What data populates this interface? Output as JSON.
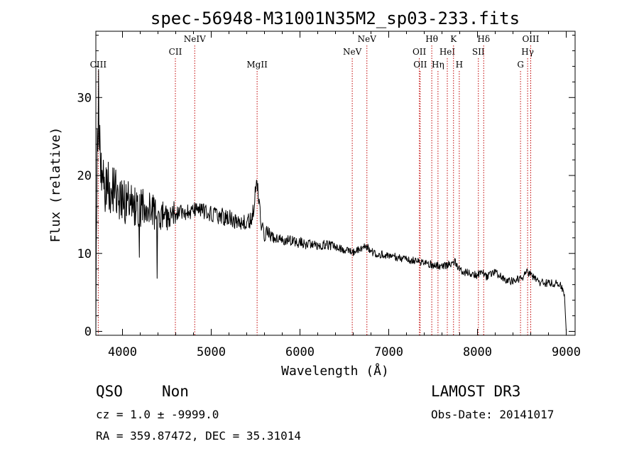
{
  "chart_data": {
    "type": "line",
    "title": "spec-56948-M31001N35M2_sp03-233.fits",
    "xlabel": "Wavelength (Å)",
    "ylabel": "Flux (relative)",
    "xlim": [
      3700,
      9100
    ],
    "ylim": [
      -0.5,
      38.5
    ],
    "x_ticks": [
      4000,
      5000,
      6000,
      7000,
      8000,
      9000
    ],
    "y_ticks": [
      0,
      10,
      20,
      30
    ],
    "spectrum_shape": {
      "x": [
        3700,
        3710,
        3720,
        3730,
        3740,
        3760,
        3780,
        3800,
        3850,
        3900,
        3950,
        4000,
        4100,
        4200,
        4300,
        4400,
        4500,
        4600,
        4700,
        4800,
        4900,
        5000,
        5100,
        5200,
        5300,
        5400,
        5450,
        5480,
        5500,
        5520,
        5540,
        5560,
        5580,
        5600,
        5650,
        5700,
        5800,
        5900,
        6000,
        6100,
        6200,
        6300,
        6400,
        6500,
        6600,
        6700,
        6750,
        6800,
        6900,
        7000,
        7100,
        7200,
        7300,
        7400,
        7500,
        7600,
        7700,
        7750,
        7800,
        7900,
        8000,
        8050,
        8100,
        8150,
        8200,
        8300,
        8400,
        8500,
        8550,
        8600,
        8650,
        8700,
        8800,
        8900,
        8950,
        8980,
        9000
      ],
      "y": [
        0,
        20,
        26,
        30,
        25,
        22,
        20,
        19,
        18.5,
        18,
        17.5,
        17,
        16.5,
        16,
        15.5,
        15,
        14.8,
        15.2,
        15.4,
        15.5,
        15.4,
        15.2,
        14.8,
        14.5,
        14.2,
        14,
        14.3,
        16,
        18.5,
        18.6,
        17,
        14,
        13,
        12.6,
        12.2,
        12,
        11.8,
        11.6,
        11.4,
        11.2,
        11.1,
        11,
        10.8,
        10.5,
        10.2,
        10.6,
        10.9,
        10.2,
        9.9,
        9.7,
        9.5,
        9.3,
        9.0,
        8.8,
        8.5,
        8.4,
        8.6,
        8.9,
        7.8,
        7.5,
        7.2,
        7.9,
        7.0,
        7.3,
        7.6,
        6.6,
        6.4,
        6.9,
        7.6,
        7.4,
        6.7,
        6.3,
        6.2,
        6.1,
        5.8,
        4.5,
        0
      ],
      "noise_amplitude_blue": 4,
      "noise_amplitude_red": 0.3
    },
    "line_markers": [
      {
        "label": "CIII",
        "x": 3727,
        "row": 2
      },
      {
        "label": "CII",
        "x": 4596,
        "row": 1
      },
      {
        "label": "NeIV",
        "x": 4814,
        "row": 0
      },
      {
        "label": "MgII",
        "x": 5517,
        "row": 2
      },
      {
        "label": "NeV",
        "x": 6589,
        "row": 1
      },
      {
        "label": "NeV",
        "x": 6754,
        "row": 0
      },
      {
        "label": "OII",
        "x": 7345,
        "row": 1
      },
      {
        "label": "OII",
        "x": 7355,
        "row": 2
      },
      {
        "label": "Hθ",
        "x": 7485,
        "row": 0
      },
      {
        "label": "Hη",
        "x": 7555,
        "row": 2
      },
      {
        "label": "HeI",
        "x": 7660,
        "row": 1
      },
      {
        "label": "K",
        "x": 7730,
        "row": 0
      },
      {
        "label": "H",
        "x": 7795,
        "row": 2
      },
      {
        "label": "SII",
        "x": 8010,
        "row": 1
      },
      {
        "label": "Hδ",
        "x": 8070,
        "row": 0
      },
      {
        "label": "G",
        "x": 8485,
        "row": 2
      },
      {
        "label": "Hγ",
        "x": 8565,
        "row": 1
      },
      {
        "label": "OIII",
        "x": 8600,
        "row": 0
      }
    ]
  },
  "info": {
    "class": "QSO",
    "subclass": "Non",
    "survey": "LAMOST DR3",
    "cz": "cz = 1.0 ± -9999.0",
    "obs_date": "Obs-Date: 20141017",
    "coords": "RA = 359.87472, DEC =  35.31014"
  }
}
